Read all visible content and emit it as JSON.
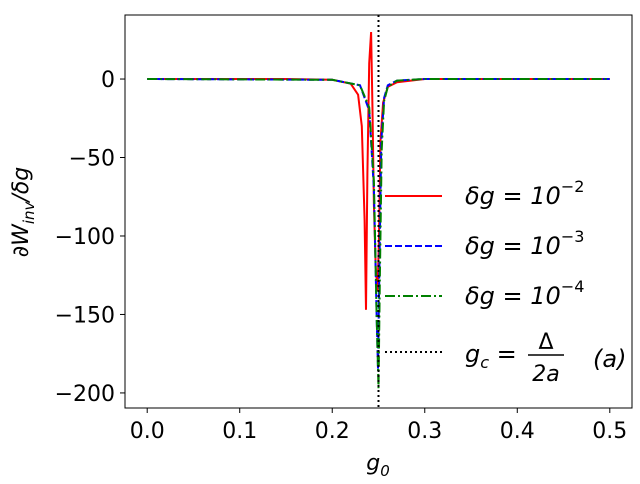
{
  "chart_data": {
    "type": "line",
    "title": "",
    "xlabel": "g",
    "xlabel_sub": "0",
    "ylabel": "∂W",
    "ylabel_sub": "inv",
    "ylabel_tail": "/δg",
    "xlim": [
      -0.024,
      0.524
    ],
    "ylim": [
      -209.6,
      40.8
    ],
    "xticks": [
      0.0,
      0.1,
      0.2,
      0.3,
      0.4,
      0.5
    ],
    "xtick_labels": [
      "0.0",
      "0.1",
      "0.2",
      "0.3",
      "0.4",
      "0.5"
    ],
    "yticks": [
      0,
      -50,
      -100,
      -150,
      -200
    ],
    "ytick_labels": [
      "0",
      "−50",
      "−100",
      "−150",
      "−200"
    ],
    "grid": false,
    "legend_placement": "center-right",
    "annotation": "(a)",
    "series": [
      {
        "name": "δg = 10^-2",
        "label_main": "δg =  10",
        "label_exp": "−2",
        "color": "#ff0000",
        "style": "solid",
        "x": [
          0,
          0.15,
          0.2,
          0.22,
          0.228,
          0.232,
          0.235,
          0.2365,
          0.238,
          0.24,
          0.242,
          0.2435,
          0.245,
          0.247,
          0.249,
          0.2505,
          0.252,
          0.255,
          0.26,
          0.27,
          0.3,
          0.4,
          0.5
        ],
        "y": [
          0,
          0,
          -0.5,
          -3,
          -10,
          -30,
          -90,
          -147,
          -60,
          10,
          30,
          -20,
          -80,
          -120,
          -135,
          -100,
          -40,
          -15,
          -5,
          -2,
          0,
          0,
          0
        ]
      },
      {
        "name": "δg = 10^-3",
        "label_main": "δg =  10",
        "label_exp": "−3",
        "color": "#0000ff",
        "style": "dashed",
        "x": [
          0,
          0.2,
          0.23,
          0.24,
          0.245,
          0.248,
          0.2495,
          0.251,
          0.253,
          0.256,
          0.26,
          0.27,
          0.3,
          0.5
        ],
        "y": [
          0,
          -0.5,
          -4,
          -20,
          -70,
          -150,
          -185,
          -120,
          -40,
          -12,
          -4,
          -1,
          0,
          0
        ]
      },
      {
        "name": "δg = 10^-4",
        "label_main": "δg =  10",
        "label_exp": "−4",
        "color": "#008000",
        "style": "dashdot",
        "x": [
          0,
          0.2,
          0.23,
          0.24,
          0.245,
          0.248,
          0.25,
          0.2515,
          0.2535,
          0.256,
          0.26,
          0.27,
          0.3,
          0.5
        ],
        "y": [
          0,
          -0.5,
          -4,
          -18,
          -65,
          -150,
          -197,
          -125,
          -45,
          -14,
          -5,
          -1,
          0,
          0
        ]
      }
    ],
    "vline": {
      "name": "g_c = Δ/2a",
      "x": 0.25,
      "color": "#000000",
      "style": "dotted",
      "label_g": "g",
      "label_sub": "c",
      "label_eq": " =",
      "num": "Δ",
      "den": "2a"
    }
  }
}
